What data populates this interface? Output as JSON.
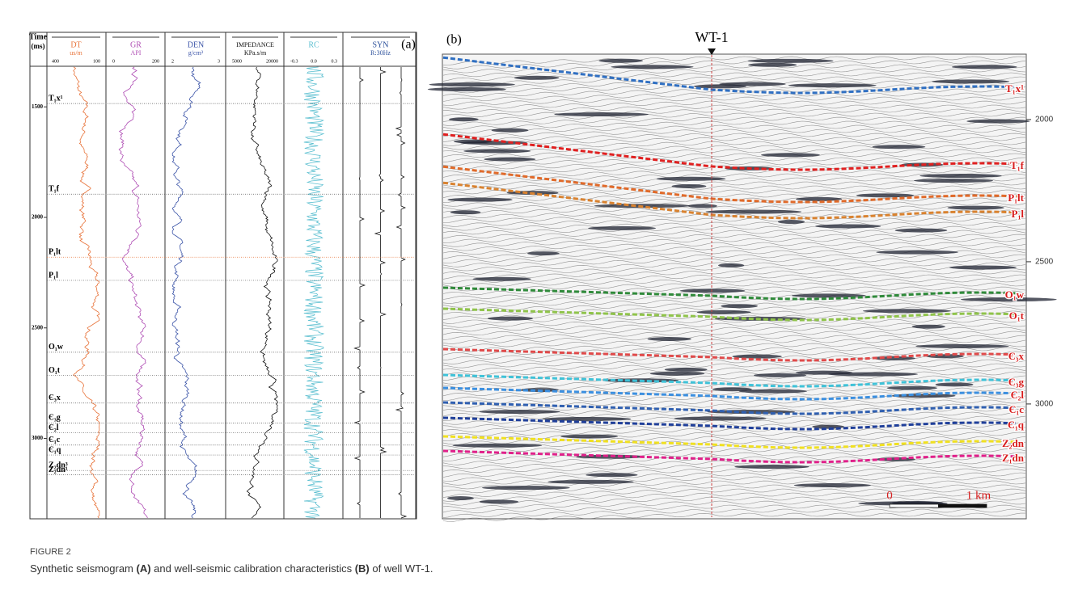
{
  "panel_a": {
    "label": "(a)",
    "time_title": "Time",
    "time_unit": "(ms)",
    "ylim": [
      1320,
      3360
    ],
    "yticks": [
      1500,
      2000,
      2500,
      3000
    ],
    "tracks": [
      {
        "name": "DT",
        "unit": "us/m",
        "color": "#e8743b",
        "scale": [
          400,
          100
        ]
      },
      {
        "name": "GR",
        "unit": "API",
        "color": "#b04fb5",
        "scale": [
          0,
          200
        ]
      },
      {
        "name": "DEN",
        "unit": "g/cm³",
        "color": "#3c55a8",
        "scale": [
          2,
          3
        ]
      },
      {
        "name": "IMPEDANCE",
        "unit": "KPa.s/m",
        "color": "#111111",
        "scale": [
          5000,
          20000
        ]
      },
      {
        "name": "RC",
        "unit": null,
        "color": "#5bbfd0",
        "scale": [
          -0.3,
          {
            "value": 0,
            "label": "0.0"
          },
          0.3
        ]
      },
      {
        "name": "SYN",
        "unit": "R:30Hz",
        "color": "#2a4f9a",
        "scale": null
      }
    ],
    "tops": [
      {
        "label": "T₁x¹",
        "time": 1485
      },
      {
        "label": "T₁f",
        "time": 1895
      },
      {
        "label": "P₁lt",
        "time": 2180
      },
      {
        "label": "P₁l",
        "time": 2285
      },
      {
        "label": "O₁w",
        "time": 2610
      },
      {
        "label": "O₁t",
        "time": 2715
      },
      {
        "label": "Є₃x",
        "time": 2840
      },
      {
        "label": "Є₃g",
        "time": 2930
      },
      {
        "label": "Є₂l",
        "time": 2975
      },
      {
        "label": "Є₁c",
        "time": 3030
      },
      {
        "label": "Є₁q",
        "time": 3075
      },
      {
        "label": "Z₂dn³",
        "time": 3145
      },
      {
        "label": "Z₂dn¹",
        "time": 3165
      }
    ]
  },
  "panel_b": {
    "label": "(b)",
    "well": "WT-1",
    "ylim": [
      1773,
      3398
    ],
    "yticks": [
      2000,
      2500,
      3000
    ],
    "horizons": [
      "T₁x¹",
      "T₁f",
      "P₁lt",
      "P₁l",
      "O₁w",
      "O₁t",
      "Є₃x",
      "Є₃g",
      "Є₂l",
      "Є₁c",
      "Є₁q",
      "Z₂dn",
      "Z₁dn"
    ],
    "scale_bar": [
      "0",
      "1 km"
    ]
  },
  "caption": {
    "figure": "FIGURE 2",
    "segments": [
      "Synthetic seismogram ",
      "(A)",
      " and well-seismic calibration characteristics ",
      "(B)",
      " of well WT-1."
    ]
  }
}
